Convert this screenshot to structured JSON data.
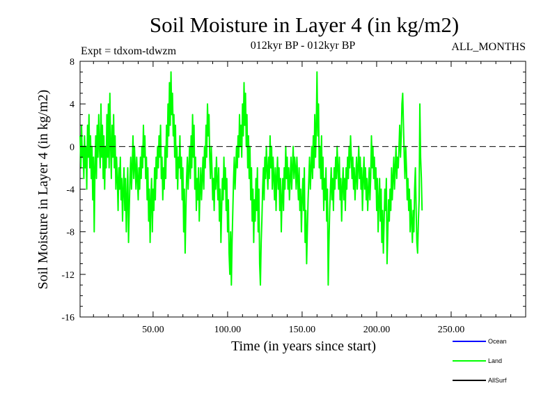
{
  "chart_data": {
    "type": "line",
    "title": "Soil Moisture in Layer 4 (in kg/m2)",
    "subtitle_left": "Expt = tdxom-tdwzm",
    "subtitle_center": "012kyr BP - 012kyr BP",
    "subtitle_right": "ALL_MONTHS",
    "xlabel": "Time (in years since start)",
    "ylabel": "Soil Moisture in Layer 4 (in kg/m2)",
    "xlim": [
      1,
      300
    ],
    "ylim": [
      -16,
      8
    ],
    "x_ticks": [
      50,
      100,
      150,
      200,
      250
    ],
    "x_tick_labels": [
      "50.00",
      "100.00",
      "150.00",
      "200.00",
      "250.00"
    ],
    "y_ticks": [
      8,
      4,
      0,
      -4,
      -8,
      -12,
      -16
    ],
    "y_tick_labels": [
      "8",
      "4",
      "0",
      "-4",
      "-8",
      "-12",
      "-16"
    ],
    "zero_line": true,
    "legend_position": "bottom-right",
    "legend": [
      {
        "name": "Ocean",
        "color": "#0000ff"
      },
      {
        "name": "Land",
        "color": "#00ff00"
      },
      {
        "name": "AllSurf",
        "color": "#000000"
      }
    ],
    "series": [
      {
        "name": "Land",
        "color": "#00ff00",
        "x_start": 1,
        "x_step": 0.5,
        "values": [
          1,
          -2,
          2,
          -1,
          0,
          -3,
          1,
          -2,
          0,
          -4,
          2,
          -1,
          3,
          -2,
          1,
          -3,
          0,
          -5,
          -1,
          -8,
          -2,
          1,
          -3,
          2,
          -1,
          3,
          0,
          -2,
          4,
          -1,
          2,
          -3,
          1,
          -4,
          0,
          -2,
          3,
          -1,
          4,
          -2,
          5,
          0,
          -3,
          2,
          -1,
          3,
          -2,
          1,
          -4,
          -1,
          -3,
          -6,
          -2,
          -4,
          -1,
          -5,
          -3,
          -7,
          -4,
          -2,
          -6,
          -3,
          -8,
          -5,
          -2,
          -9,
          -6,
          -3,
          -1,
          -4,
          -2,
          1,
          -3,
          0,
          -2,
          -4,
          -1,
          -3,
          -5,
          -2,
          -4,
          -1,
          -3,
          0,
          -2,
          2,
          -1,
          1,
          -3,
          -1,
          -5,
          -2,
          -7,
          -4,
          -9,
          -5,
          -3,
          -8,
          -4,
          -6,
          -2,
          -5,
          -1,
          -3,
          0,
          -2,
          1,
          -1,
          2,
          -3,
          -1,
          -5,
          -2,
          -4,
          0,
          -3,
          2,
          -1,
          4,
          1,
          6,
          2,
          7,
          3,
          5,
          1,
          3,
          -1,
          2,
          -3,
          0,
          -4,
          -1,
          -2,
          1,
          -3,
          -1,
          -5,
          -2,
          -8,
          -4,
          -10,
          -6,
          -3,
          -1,
          -4,
          -2,
          0,
          -3,
          1,
          -2,
          3,
          -1,
          2,
          -4,
          -1,
          -6,
          -3,
          -5,
          -2,
          -7,
          -4,
          -2,
          -5,
          -3,
          -1,
          -4,
          0,
          -2,
          2,
          -1,
          4,
          1,
          3,
          -1,
          -3,
          0,
          -2,
          -5,
          -3,
          -6,
          -2,
          -4,
          -1,
          -3,
          -5,
          -2,
          -7,
          -4,
          -9,
          -6,
          -3,
          -5,
          -1,
          -4,
          -2,
          -6,
          -3,
          -8,
          -5,
          -10,
          -12,
          -8,
          -13,
          -9,
          -6,
          -3,
          -1,
          -4,
          -2,
          0,
          -2,
          1,
          -1,
          3,
          0,
          2,
          -1,
          4,
          1,
          6,
          2,
          5,
          0,
          3,
          -2,
          1,
          -3,
          0,
          -5,
          -2,
          -7,
          -4,
          -9,
          -5,
          -7,
          -3,
          -6,
          -2,
          -8,
          -4,
          -11,
          -13,
          -9,
          -7,
          -4,
          -2,
          -5,
          -1,
          -3,
          0,
          -2,
          -4,
          -1,
          -3,
          1,
          -2,
          0,
          -4,
          -1,
          -3,
          -5,
          -2,
          -6,
          -3,
          -1,
          -4,
          -2,
          -6,
          -3,
          -8,
          -5,
          -3,
          -6,
          -2,
          -4,
          0,
          -3,
          -1,
          -4,
          -2,
          -5,
          -3,
          -1,
          -4,
          -2,
          0,
          -3,
          -1,
          -2,
          -4,
          -1,
          -3,
          -5,
          -2,
          -6,
          -4,
          -8,
          -5,
          -3,
          -6,
          -2,
          -9,
          -6,
          -11,
          -8,
          -5,
          -3,
          -1,
          -4,
          -2,
          0,
          -3,
          1,
          -2,
          3,
          -1,
          2,
          7,
          1,
          4,
          -2,
          0,
          -3,
          1,
          -4,
          -1,
          -6,
          -3,
          -5,
          -2,
          -7,
          -4,
          -13,
          -9,
          -6,
          -4,
          -2,
          -5,
          -3,
          -6,
          -2,
          -4,
          -1,
          -3,
          0,
          -2,
          -4,
          -1,
          -5,
          -3,
          -7,
          -4,
          -2,
          -5,
          -3,
          -6,
          -2,
          -4,
          -1,
          -3,
          0,
          -2,
          1,
          -1,
          -3,
          -1,
          -4,
          -2,
          -5,
          -3,
          -1,
          -4,
          -2,
          0,
          -3,
          -1,
          -4,
          -2,
          -6,
          -3,
          -1,
          -4,
          -2,
          -5,
          -3,
          -6,
          -4,
          -2,
          -5,
          -3,
          1,
          -2,
          0,
          -3,
          -1,
          -4,
          -2,
          -6,
          -3,
          -8,
          -5,
          -3,
          -7,
          -4,
          -9,
          -6,
          -10,
          -7,
          -4,
          -6,
          -3,
          -11,
          -8,
          -5,
          -7,
          -4,
          -6,
          -2,
          -5,
          -3,
          -1,
          -4,
          -2,
          0,
          -3,
          -1,
          -2,
          0,
          2,
          -1,
          1,
          4,
          5,
          2,
          -1,
          -3,
          0,
          -2,
          -5,
          -3,
          -6,
          -4,
          -8,
          -5,
          -7,
          -9,
          -6,
          -8,
          -4,
          -2,
          -6,
          -9,
          -10,
          -7,
          -5,
          4,
          -1,
          -3,
          -6
        ]
      }
    ]
  }
}
